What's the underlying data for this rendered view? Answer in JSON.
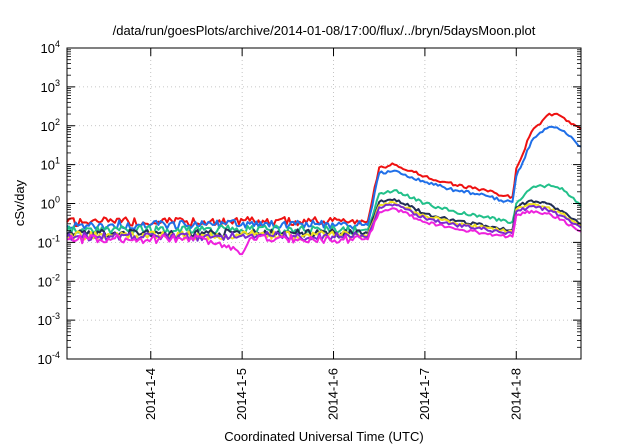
{
  "chart_data": {
    "type": "line",
    "title": "/data/run/goesPlots/archive/2014-01-08/17:00/flux/../bryn/5daysMoon.plot",
    "xlabel": "Coordinated Universal Time (UTC)",
    "ylabel": "cSv/day",
    "y_scale": "log",
    "ylim": [
      0.0001,
      10000
    ],
    "xlim": [
      "2014-01-03 02:00",
      "2014-01-08 17:00"
    ],
    "y_ticks": [
      {
        "value": 0.0001,
        "base": "10",
        "exp": "-4"
      },
      {
        "value": 0.001,
        "base": "10",
        "exp": "-3"
      },
      {
        "value": 0.01,
        "base": "10",
        "exp": "-2"
      },
      {
        "value": 0.1,
        "base": "10",
        "exp": "-1"
      },
      {
        "value": 1,
        "base": "10",
        "exp": "0"
      },
      {
        "value": 10,
        "base": "10",
        "exp": "1"
      },
      {
        "value": 100,
        "base": "10",
        "exp": "2"
      },
      {
        "value": 1000,
        "base": "10",
        "exp": "3"
      },
      {
        "value": 10000,
        "base": "10",
        "exp": "4"
      }
    ],
    "x_ticks": [
      {
        "value": "2014-01-04 00:00",
        "label": "2014-1-4"
      },
      {
        "value": "2014-01-05 00:00",
        "label": "2014-1-5"
      },
      {
        "value": "2014-01-06 00:00",
        "label": "2014-1-6"
      },
      {
        "value": "2014-01-07 00:00",
        "label": "2014-1-7"
      },
      {
        "value": "2014-01-08 00:00",
        "label": "2014-1-8"
      }
    ],
    "grid": true,
    "legend": "none",
    "series": [
      {
        "color": "#ee1111",
        "points": [
          [
            "2014-01-03 02:00",
            0.33
          ],
          [
            "2014-01-03 14:00",
            0.35
          ],
          [
            "2014-01-04 02:00",
            0.34
          ],
          [
            "2014-01-04 14:00",
            0.35
          ],
          [
            "2014-01-05 02:00",
            0.36
          ],
          [
            "2014-01-05 14:00",
            0.35
          ],
          [
            "2014-01-06 02:00",
            0.35
          ],
          [
            "2014-01-06 08:00",
            0.34
          ],
          [
            "2014-01-06 09:00",
            0.35
          ],
          [
            "2014-01-06 12:00",
            8.5
          ],
          [
            "2014-01-06 16:00",
            10.0
          ],
          [
            "2014-01-07 00:00",
            5.0
          ],
          [
            "2014-01-07 08:00",
            3.0
          ],
          [
            "2014-01-07 16:00",
            2.2
          ],
          [
            "2014-01-07 20:00",
            1.6
          ],
          [
            "2014-01-07 23:00",
            1.5
          ],
          [
            "2014-01-08 00:00",
            8.0
          ],
          [
            "2014-01-08 04:00",
            70.0
          ],
          [
            "2014-01-08 08:00",
            180.0
          ],
          [
            "2014-01-08 10:00",
            200.0
          ],
          [
            "2014-01-08 12:00",
            170.0
          ],
          [
            "2014-01-08 15:00",
            110.0
          ],
          [
            "2014-01-08 17:00",
            80.0
          ]
        ]
      },
      {
        "color": "#1f6fe8",
        "points": [
          [
            "2014-01-03 02:00",
            0.27
          ],
          [
            "2014-01-03 14:00",
            0.29
          ],
          [
            "2014-01-04 02:00",
            0.28
          ],
          [
            "2014-01-04 14:00",
            0.29
          ],
          [
            "2014-01-05 02:00",
            0.3
          ],
          [
            "2014-01-05 14:00",
            0.29
          ],
          [
            "2014-01-06 02:00",
            0.29
          ],
          [
            "2014-01-06 08:00",
            0.28
          ],
          [
            "2014-01-06 09:00",
            0.28
          ],
          [
            "2014-01-06 12:00",
            6.0
          ],
          [
            "2014-01-06 16:00",
            7.0
          ],
          [
            "2014-01-07 00:00",
            3.5
          ],
          [
            "2014-01-07 08:00",
            2.2
          ],
          [
            "2014-01-07 16:00",
            1.6
          ],
          [
            "2014-01-07 20:00",
            1.2
          ],
          [
            "2014-01-07 23:00",
            1.1
          ],
          [
            "2014-01-08 00:00",
            5.0
          ],
          [
            "2014-01-08 04:00",
            40.0
          ],
          [
            "2014-01-08 08:00",
            85.0
          ],
          [
            "2014-01-08 10:00",
            90.0
          ],
          [
            "2014-01-08 12:00",
            75.0
          ],
          [
            "2014-01-08 15:00",
            45.0
          ],
          [
            "2014-01-08 17:00",
            29.0
          ]
        ]
      },
      {
        "color": "#22c08a",
        "points": [
          [
            "2014-01-03 02:00",
            0.2
          ],
          [
            "2014-01-03 14:00",
            0.21
          ],
          [
            "2014-01-04 02:00",
            0.21
          ],
          [
            "2014-01-04 14:00",
            0.21
          ],
          [
            "2014-01-05 02:00",
            0.22
          ],
          [
            "2014-01-05 14:00",
            0.21
          ],
          [
            "2014-01-06 02:00",
            0.21
          ],
          [
            "2014-01-06 08:00",
            0.21
          ],
          [
            "2014-01-06 09:00",
            0.21
          ],
          [
            "2014-01-06 12:00",
            1.8
          ],
          [
            "2014-01-06 16:00",
            2.2
          ],
          [
            "2014-01-07 00:00",
            1.0
          ],
          [
            "2014-01-07 08:00",
            0.6
          ],
          [
            "2014-01-07 16:00",
            0.45
          ],
          [
            "2014-01-07 20:00",
            0.36
          ],
          [
            "2014-01-07 23:00",
            0.34
          ],
          [
            "2014-01-08 00:00",
            1.0
          ],
          [
            "2014-01-08 04:00",
            2.5
          ],
          [
            "2014-01-08 08:00",
            2.9
          ],
          [
            "2014-01-08 12:00",
            2.5
          ],
          [
            "2014-01-08 15:00",
            1.4
          ],
          [
            "2014-01-08 17:00",
            0.85
          ]
        ]
      },
      {
        "color": "#202c54",
        "points": [
          [
            "2014-01-03 02:00",
            0.16
          ],
          [
            "2014-01-03 14:00",
            0.17
          ],
          [
            "2014-01-04 02:00",
            0.17
          ],
          [
            "2014-01-04 14:00",
            0.17
          ],
          [
            "2014-01-05 02:00",
            0.17
          ],
          [
            "2014-01-05 14:00",
            0.17
          ],
          [
            "2014-01-06 02:00",
            0.17
          ],
          [
            "2014-01-06 08:00",
            0.17
          ],
          [
            "2014-01-06 09:00",
            0.17
          ],
          [
            "2014-01-06 12:00",
            1.1
          ],
          [
            "2014-01-06 16:00",
            1.3
          ],
          [
            "2014-01-07 00:00",
            0.55
          ],
          [
            "2014-01-07 08:00",
            0.35
          ],
          [
            "2014-01-07 16:00",
            0.27
          ],
          [
            "2014-01-07 20:00",
            0.22
          ],
          [
            "2014-01-07 23:00",
            0.21
          ],
          [
            "2014-01-08 00:00",
            0.8
          ],
          [
            "2014-01-08 04:00",
            1.2
          ],
          [
            "2014-01-08 08:00",
            1.0
          ],
          [
            "2014-01-08 12:00",
            0.65
          ],
          [
            "2014-01-08 15:00",
            0.4
          ],
          [
            "2014-01-08 17:00",
            0.3
          ]
        ]
      },
      {
        "color": "#f0e020",
        "points": [
          [
            "2014-01-03 02:00",
            0.15
          ],
          [
            "2014-01-03 14:00",
            0.15
          ],
          [
            "2014-01-04 02:00",
            0.15
          ],
          [
            "2014-01-04 14:00",
            0.15
          ],
          [
            "2014-01-05 02:00",
            0.16
          ],
          [
            "2014-01-05 14:00",
            0.15
          ],
          [
            "2014-01-06 02:00",
            0.15
          ],
          [
            "2014-01-06 08:00",
            0.15
          ],
          [
            "2014-01-06 09:00",
            0.15
          ],
          [
            "2014-01-06 12:00",
            0.9
          ],
          [
            "2014-01-06 16:00",
            1.05
          ],
          [
            "2014-01-07 00:00",
            0.48
          ],
          [
            "2014-01-07 08:00",
            0.31
          ],
          [
            "2014-01-07 16:00",
            0.24
          ],
          [
            "2014-01-07 20:00",
            0.2
          ],
          [
            "2014-01-07 23:00",
            0.19
          ],
          [
            "2014-01-08 00:00",
            0.7
          ],
          [
            "2014-01-08 04:00",
            0.95
          ],
          [
            "2014-01-08 08:00",
            0.8
          ],
          [
            "2014-01-08 12:00",
            0.55
          ],
          [
            "2014-01-08 15:00",
            0.35
          ],
          [
            "2014-01-08 17:00",
            0.27
          ]
        ]
      },
      {
        "color": "#7a2bd0",
        "points": [
          [
            "2014-01-03 02:00",
            0.14
          ],
          [
            "2014-01-03 14:00",
            0.14
          ],
          [
            "2014-01-04 02:00",
            0.14
          ],
          [
            "2014-01-04 14:00",
            0.14
          ],
          [
            "2014-01-05 02:00",
            0.15
          ],
          [
            "2014-01-05 14:00",
            0.14
          ],
          [
            "2014-01-06 02:00",
            0.14
          ],
          [
            "2014-01-06 08:00",
            0.14
          ],
          [
            "2014-01-06 09:00",
            0.14
          ],
          [
            "2014-01-06 12:00",
            0.8
          ],
          [
            "2014-01-06 16:00",
            0.95
          ],
          [
            "2014-01-07 00:00",
            0.42
          ],
          [
            "2014-01-07 08:00",
            0.28
          ],
          [
            "2014-01-07 16:00",
            0.22
          ],
          [
            "2014-01-07 20:00",
            0.18
          ],
          [
            "2014-01-07 23:00",
            0.17
          ],
          [
            "2014-01-08 00:00",
            0.62
          ],
          [
            "2014-01-08 04:00",
            0.85
          ],
          [
            "2014-01-08 08:00",
            0.7
          ],
          [
            "2014-01-08 12:00",
            0.48
          ],
          [
            "2014-01-08 15:00",
            0.3
          ],
          [
            "2014-01-08 17:00",
            0.24
          ]
        ]
      },
      {
        "color": "#ee22dd",
        "points": [
          [
            "2014-01-03 02:00",
            0.12
          ],
          [
            "2014-01-03 14:00",
            0.125
          ],
          [
            "2014-01-04 02:00",
            0.12
          ],
          [
            "2014-01-04 14:00",
            0.125
          ],
          [
            "2014-01-05 00:00",
            0.05
          ],
          [
            "2014-01-05 02:00",
            0.125
          ],
          [
            "2014-01-05 14:00",
            0.12
          ],
          [
            "2014-01-06 02:00",
            0.12
          ],
          [
            "2014-01-06 08:00",
            0.12
          ],
          [
            "2014-01-06 09:00",
            0.12
          ],
          [
            "2014-01-06 12:00",
            0.6
          ],
          [
            "2014-01-06 16:00",
            0.75
          ],
          [
            "2014-01-07 00:00",
            0.33
          ],
          [
            "2014-01-07 08:00",
            0.22
          ],
          [
            "2014-01-07 16:00",
            0.17
          ],
          [
            "2014-01-07 20:00",
            0.15
          ],
          [
            "2014-01-07 23:00",
            0.14
          ],
          [
            "2014-01-08 00:00",
            0.5
          ],
          [
            "2014-01-08 04:00",
            0.65
          ],
          [
            "2014-01-08 08:00",
            0.55
          ],
          [
            "2014-01-08 12:00",
            0.38
          ],
          [
            "2014-01-08 15:00",
            0.25
          ],
          [
            "2014-01-08 17:00",
            0.19
          ]
        ]
      }
    ]
  }
}
